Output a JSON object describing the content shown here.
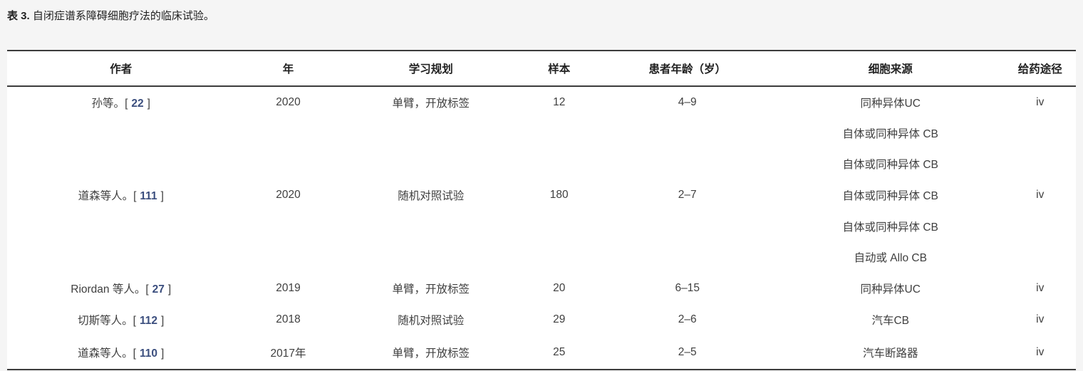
{
  "caption": {
    "label": "表 3.",
    "title": "自闭症谱系障碍细胞疗法的临床试验。"
  },
  "colors": {
    "page_background": "#f5f5f5",
    "table_background": "#ffffff",
    "table_border": "#3c3c3c",
    "body_text": "#3f3f3f",
    "header_text": "#212121",
    "reference_link": "#3b4e7e"
  },
  "table": {
    "columns": {
      "author": "作者",
      "year": "年",
      "design": "学习规划",
      "sample": "样本",
      "age": "患者年龄（岁）",
      "source": "细胞来源",
      "route": "给药途径"
    },
    "rows": [
      {
        "author": "孙等。",
        "ref_open": "[",
        "ref": "22",
        "ref_close": "]",
        "year": "2020",
        "design": "单臂，开放标签",
        "sample": "12",
        "age": "4–9",
        "sources": [
          "同种异体UC"
        ],
        "route": "iv"
      },
      {
        "author": "道森等人。",
        "ref_open": "[",
        "ref": "111",
        "ref_close": "]",
        "year": "2020",
        "design": "随机对照试验",
        "sample": "180",
        "age": "2–7",
        "sources": [
          "自体或同种异体 CB",
          "自体或同种异体 CB",
          "自体或同种异体 CB",
          "自体或同种异体 CB",
          "自动或 Allo CB"
        ],
        "route": "iv"
      },
      {
        "author": "Riordan 等人。",
        "ref_open": "[",
        "ref": "27",
        "ref_close": "]",
        "year": "2019",
        "design": "单臂，开放标签",
        "sample": "20",
        "age": "6–15",
        "sources": [
          "同种异体UC"
        ],
        "route": "iv"
      },
      {
        "author": "切斯等人。",
        "ref_open": "[",
        "ref": "112",
        "ref_close": "]",
        "year": "2018",
        "design": "随机对照试验",
        "sample": "29",
        "age": "2–6",
        "sources": [
          "汽车CB"
        ],
        "route": "iv"
      },
      {
        "author": "道森等人。",
        "ref_open": "[",
        "ref": "110",
        "ref_close": "]",
        "year": "2017年",
        "design": "单臂，开放标签",
        "sample": "25",
        "age": "2–5",
        "sources": [
          "汽车断路器"
        ],
        "route": "iv"
      }
    ]
  }
}
